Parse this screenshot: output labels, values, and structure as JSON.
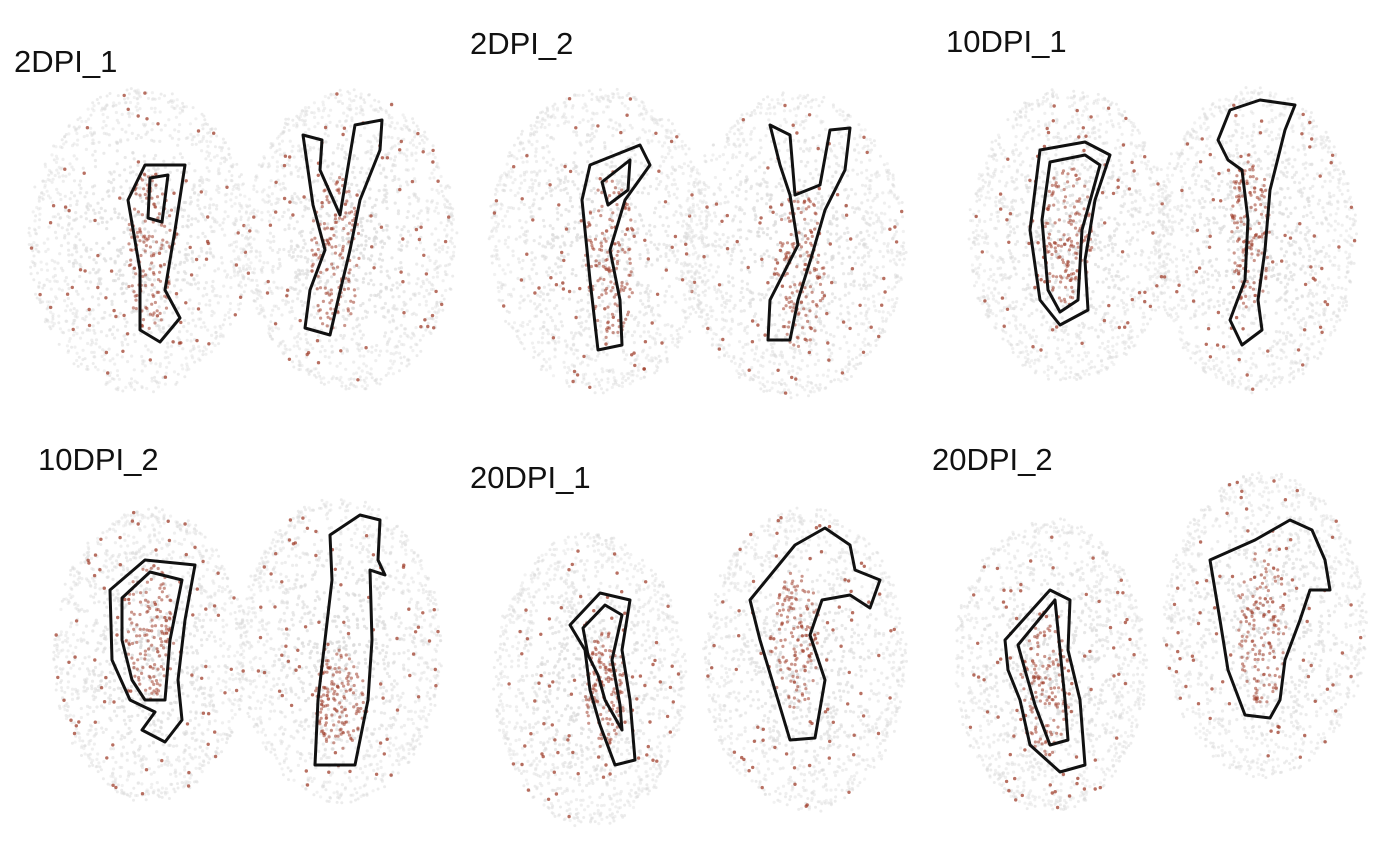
{
  "chart_data": [
    {
      "type": "scatter",
      "title": "2DPI_1",
      "contours": true,
      "point_colors": {
        "background": "#d9d9d9",
        "expression": "#a0402e",
        "contour": "#111111"
      }
    },
    {
      "type": "scatter",
      "title": "2DPI_2",
      "contours": true,
      "point_colors": {
        "background": "#d9d9d9",
        "expression": "#a0402e",
        "contour": "#111111"
      }
    },
    {
      "type": "scatter",
      "title": "10DPI_1",
      "contours": true,
      "point_colors": {
        "background": "#d9d9d9",
        "expression": "#a0402e",
        "contour": "#111111"
      }
    },
    {
      "type": "scatter",
      "title": "10DPI_2",
      "contours": true,
      "point_colors": {
        "background": "#d9d9d9",
        "expression": "#a0402e",
        "contour": "#111111"
      }
    },
    {
      "type": "scatter",
      "title": "20DPI_1",
      "contours": true,
      "point_colors": {
        "background": "#d9d9d9",
        "expression": "#a0402e",
        "contour": "#111111"
      }
    },
    {
      "type": "scatter",
      "title": "20DPI_2",
      "contours": true,
      "point_colors": {
        "background": "#d9d9d9",
        "expression": "#a0402e",
        "contour": "#111111"
      }
    }
  ]
}
